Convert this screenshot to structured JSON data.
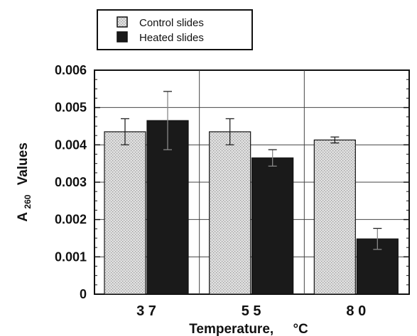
{
  "chart_data": {
    "type": "bar",
    "categories": [
      "3 7",
      "5 5",
      "8 0"
    ],
    "series": [
      {
        "name": "Control slides",
        "values": [
          0.00435,
          0.00435,
          0.00413
        ],
        "errors": [
          0.00035,
          0.00035,
          8e-05
        ],
        "color": "#d8d8d8"
      },
      {
        "name": "Heated slides",
        "values": [
          0.00465,
          0.00365,
          0.00148
        ],
        "errors": [
          0.00078,
          0.00022,
          0.00028
        ],
        "color": "#1a1a1a"
      }
    ],
    "xlabel_main": "Temperature,",
    "xlabel_unit": "°C",
    "ylabel_prefix": "A",
    "ylabel_sub": "260",
    "ylabel_suffix": "Values",
    "ylim": [
      0,
      0.006
    ],
    "yticks": [
      "0",
      "0.001",
      "0.002",
      "0.003",
      "0.004",
      "0.005",
      "0.006"
    ],
    "grid": true,
    "legend": "top-left"
  }
}
